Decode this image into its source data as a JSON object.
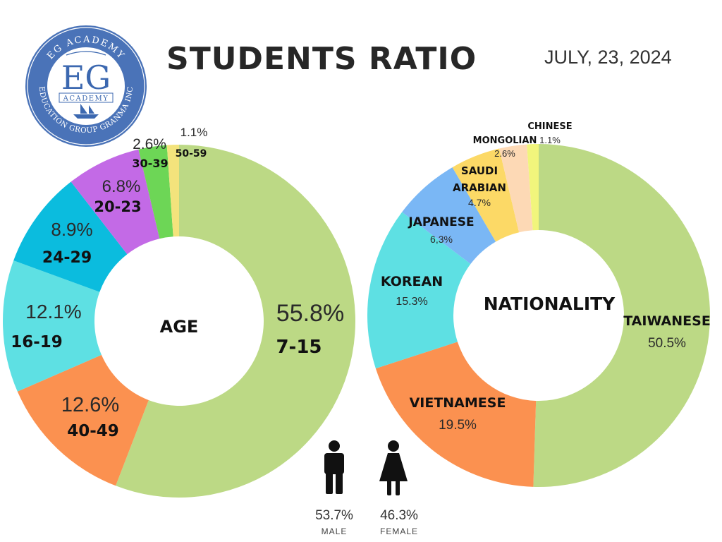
{
  "header": {
    "title": "STUDENTS RATIO",
    "date": "JULY, 23, 2024"
  },
  "logo": {
    "arc_top": "EG ACADEMY",
    "initials": "EG",
    "sub": "ACADEMY",
    "arc_bottom": "EDUCATION GROUP GRANMA INC",
    "colors": {
      "ring": "#4a73b8",
      "text": "#3c68b0"
    }
  },
  "chart_data": [
    {
      "type": "pie",
      "title": "AGE",
      "slices": [
        {
          "label": "7-15",
          "value": 55.8,
          "display": "55.8%",
          "color": "#bcd985"
        },
        {
          "label": "40-49",
          "value": 12.6,
          "display": "12.6%",
          "color": "#fb9150"
        },
        {
          "label": "16-19",
          "value": 12.1,
          "display": "12.1%",
          "color": "#5ee0e3"
        },
        {
          "label": "24-29",
          "value": 8.9,
          "display": "8.9%",
          "color": "#0bbcde"
        },
        {
          "label": "20-23",
          "value": 6.8,
          "display": "6.8%",
          "color": "#c36ae6"
        },
        {
          "label": "30-39",
          "value": 2.6,
          "display": "2.6%",
          "color": "#6dd656"
        },
        {
          "label": "50-59",
          "value": 1.1,
          "display": "1.1%",
          "color": "#f3e37c"
        }
      ]
    },
    {
      "type": "pie",
      "title": "NATIONALITY",
      "slices": [
        {
          "label": "TAIWANESE",
          "value": 50.5,
          "display": "50.5%",
          "color": "#bcd985"
        },
        {
          "label": "VIETNAMESE",
          "value": 19.5,
          "display": "19.5%",
          "color": "#fb9150"
        },
        {
          "label": "KOREAN",
          "value": 15.3,
          "display": "15.3%",
          "color": "#5ee0e3"
        },
        {
          "label": "JAPANESE",
          "value": 6.3,
          "display": "6,3%",
          "color": "#7ab7f5"
        },
        {
          "label": "SAUDI ARABIAN",
          "value": 4.7,
          "display": "4.7%",
          "color": "#fcd966"
        },
        {
          "label": "MONGOLIAN",
          "value": 2.6,
          "display": "2.6%",
          "color": "#fdd9b5"
        },
        {
          "label": "CHINESE",
          "value": 1.1,
          "display": "1.1%",
          "color": "#f1f57c"
        }
      ]
    }
  ],
  "gender": [
    {
      "label": "MALE",
      "value": "53.7%",
      "icon": "male-icon"
    },
    {
      "label": "FEMALE",
      "value": "46.3%",
      "icon": "female-icon"
    }
  ]
}
